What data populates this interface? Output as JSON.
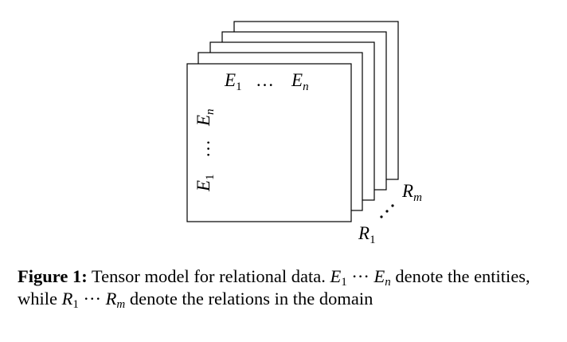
{
  "figure": {
    "caption_label": "Figure 1:",
    "caption_text_1": "Tensor model for relational data.",
    "caption_text_2": "denote the entities, while",
    "caption_text_3": "denote the relations in the domain",
    "math": {
      "E": "E",
      "R": "R",
      "sub_1": "1",
      "sub_n": "n",
      "sub_m": "m",
      "dots": "…",
      "cdots": "···"
    }
  }
}
